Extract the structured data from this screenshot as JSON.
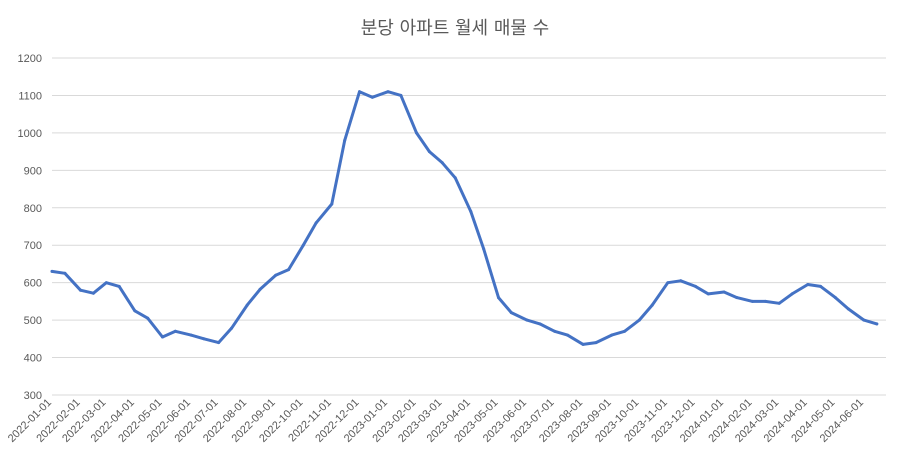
{
  "chart_data": {
    "type": "line",
    "title": "분당 아파트 월세 매물 수",
    "xlabel": "",
    "ylabel": "",
    "ylim": [
      300,
      1200
    ],
    "y_ticks": [
      300,
      400,
      500,
      600,
      700,
      800,
      900,
      1000,
      1100,
      1200
    ],
    "grid": true,
    "legend": "none",
    "x_tick_labels": [
      "2022-01-01",
      "2022-02-01",
      "2022-03-01",
      "2022-04-01",
      "2022-05-01",
      "2022-06-01",
      "2022-07-01",
      "2022-08-01",
      "2022-09-01",
      "2022-10-01",
      "2022-11-01",
      "2022-12-01",
      "2023-01-01",
      "2023-02-01",
      "2023-03-01",
      "2023-04-01",
      "2023-05-01",
      "2023-06-01",
      "2023-07-01",
      "2023-08-01",
      "2023-09-01",
      "2023-10-01",
      "2023-11-01",
      "2023-12-01",
      "2024-01-01",
      "2024-02-01",
      "2024-03-01",
      "2024-04-01",
      "2024-05-01",
      "2024-06-01"
    ],
    "series": [
      {
        "color": "#4472c4",
        "x": [
          "2022-01-01",
          "2022-01-15",
          "2022-02-01",
          "2022-02-15",
          "2022-03-01",
          "2022-03-15",
          "2022-04-01",
          "2022-04-15",
          "2022-05-01",
          "2022-05-15",
          "2022-06-01",
          "2022-06-15",
          "2022-07-01",
          "2022-07-15",
          "2022-08-01",
          "2022-08-15",
          "2022-09-01",
          "2022-09-15",
          "2022-10-01",
          "2022-10-15",
          "2022-11-01",
          "2022-11-15",
          "2022-12-01",
          "2022-12-15",
          "2023-01-01",
          "2023-01-15",
          "2023-02-01",
          "2023-02-15",
          "2023-03-01",
          "2023-03-15",
          "2023-04-01",
          "2023-04-15",
          "2023-05-01",
          "2023-05-15",
          "2023-06-01",
          "2023-06-15",
          "2023-07-01",
          "2023-07-15",
          "2023-08-01",
          "2023-08-15",
          "2023-09-01",
          "2023-09-15",
          "2023-10-01",
          "2023-10-15",
          "2023-11-01",
          "2023-11-15",
          "2023-12-01",
          "2023-12-15",
          "2024-01-01",
          "2024-01-15",
          "2024-02-01",
          "2024-02-15",
          "2024-03-01",
          "2024-03-15",
          "2024-04-01",
          "2024-04-15",
          "2024-05-01",
          "2024-05-15",
          "2024-06-01",
          "2024-06-15"
        ],
        "values": [
          630,
          625,
          580,
          572,
          600,
          590,
          525,
          505,
          455,
          470,
          460,
          450,
          440,
          478,
          540,
          582,
          620,
          635,
          700,
          760,
          810,
          980,
          1110,
          1095,
          1110,
          1100,
          1000,
          950,
          920,
          880,
          790,
          690,
          560,
          520,
          500,
          490,
          470,
          460,
          435,
          440,
          460,
          470,
          500,
          540,
          600,
          605,
          590,
          570,
          575,
          560,
          550,
          550,
          545,
          570,
          595,
          590,
          560,
          530,
          500,
          490
        ]
      }
    ]
  }
}
